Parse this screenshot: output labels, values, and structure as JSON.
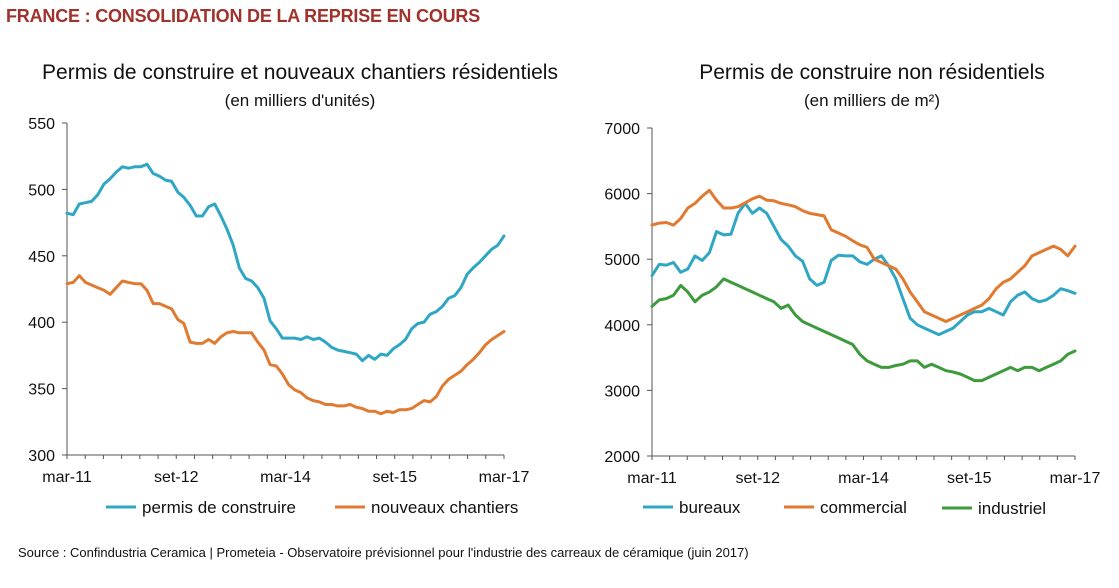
{
  "headline": "FRANCE : CONSOLIDATION DE LA REPRISE EN COURS",
  "source": "Source : Confindustria Ceramica | Prometeia - Observatoire prévisionnel pour l'industrie des carreaux de céramique (juin 2017)",
  "colors": {
    "blue": "#2fa7c4",
    "orange": "#e07a31",
    "green": "#3d9a3d"
  },
  "chart_data": [
    {
      "type": "line",
      "title": "Permis de construire et nouveaux chantiers résidentiels",
      "subtitle": "(en milliers d'unités)",
      "ylim": [
        300,
        550
      ],
      "yticks": [
        "300",
        "350",
        "400",
        "450",
        "500",
        "550"
      ],
      "xticks": [
        "mar-11",
        "set-12",
        "mar-14",
        "set-15",
        "mar-17"
      ],
      "x_index_range": [
        0,
        72
      ],
      "legend": "bottom",
      "series": [
        {
          "name": "permis de construire",
          "color": "#2fa7c4",
          "values": [
            482,
            481,
            489,
            490,
            491,
            496,
            504,
            508,
            513,
            517,
            516,
            517,
            517,
            519,
            512,
            510,
            507,
            506,
            498,
            494,
            488,
            480,
            480,
            487,
            489,
            480,
            470,
            458,
            441,
            433,
            431,
            426,
            418,
            401,
            395,
            388,
            388,
            388,
            387,
            389,
            387,
            388,
            385,
            381,
            379,
            378,
            377,
            376,
            371,
            375,
            372,
            376,
            375,
            380,
            383,
            387,
            395,
            399,
            400,
            406,
            408,
            412,
            418,
            420,
            426,
            436,
            441,
            445,
            450,
            455,
            458,
            465
          ]
        },
        {
          "name": "nouveaux chantiers",
          "color": "#e07a31",
          "values": [
            429,
            430,
            435,
            430,
            428,
            426,
            424,
            421,
            426,
            431,
            430,
            429,
            429,
            424,
            414,
            414,
            412,
            410,
            402,
            399,
            385,
            384,
            384,
            387,
            384,
            389,
            392,
            393,
            392,
            392,
            392,
            385,
            379,
            368,
            367,
            361,
            353,
            349,
            347,
            343,
            341,
            340,
            338,
            338,
            337,
            337,
            338,
            336,
            335,
            333,
            333,
            331,
            333,
            332,
            334,
            334,
            335,
            338,
            341,
            340,
            344,
            352,
            357,
            360,
            363,
            368,
            372,
            377,
            383,
            387,
            390,
            393
          ]
        }
      ]
    },
    {
      "type": "line",
      "title": "Permis de construire non résidentiels",
      "subtitle": "(en milliers de m²)",
      "ylim": [
        2000,
        7000
      ],
      "yticks": [
        "2000",
        "3000",
        "4000",
        "5000",
        "6000",
        "7000"
      ],
      "xticks": [
        "mar-11",
        "set-12",
        "mar-14",
        "set-15",
        "mar-17"
      ],
      "x_index_range": [
        0,
        72
      ],
      "legend": "bottom",
      "series": [
        {
          "name": "bureaux",
          "color": "#2fa7c4",
          "values": [
            4750,
            4920,
            4910,
            4950,
            4800,
            4850,
            5050,
            4980,
            5100,
            5420,
            5370,
            5380,
            5700,
            5850,
            5700,
            5780,
            5700,
            5500,
            5300,
            5200,
            5050,
            4970,
            4700,
            4600,
            4650,
            4980,
            5060,
            5050,
            5050,
            4960,
            4920,
            5000,
            5050,
            4900,
            4700,
            4400,
            4100,
            4000,
            3950,
            3900,
            3850,
            3900,
            3950,
            4050,
            4150,
            4200,
            4200,
            4250,
            4200,
            4150,
            4350,
            4450,
            4500,
            4400,
            4350,
            4380,
            4450,
            4550,
            4520,
            4480
          ]
        },
        {
          "name": "commercial",
          "color": "#e07a31",
          "values": [
            5520,
            5550,
            5560,
            5520,
            5620,
            5780,
            5850,
            5960,
            6050,
            5900,
            5780,
            5780,
            5800,
            5860,
            5920,
            5960,
            5900,
            5890,
            5850,
            5830,
            5800,
            5740,
            5700,
            5680,
            5660,
            5450,
            5400,
            5350,
            5280,
            5220,
            5180,
            5000,
            4950,
            4900,
            4850,
            4700,
            4500,
            4350,
            4200,
            4150,
            4100,
            4050,
            4100,
            4150,
            4200,
            4250,
            4300,
            4400,
            4550,
            4650,
            4700,
            4800,
            4900,
            5050,
            5100,
            5150,
            5200,
            5150,
            5050,
            5200
          ]
        },
        {
          "name": "industriel",
          "color": "#3d9a3d",
          "values": [
            4280,
            4380,
            4400,
            4450,
            4600,
            4500,
            4350,
            4450,
            4500,
            4580,
            4700,
            4650,
            4600,
            4550,
            4500,
            4450,
            4400,
            4350,
            4250,
            4300,
            4150,
            4050,
            4000,
            3950,
            3900,
            3850,
            3800,
            3750,
            3700,
            3550,
            3450,
            3400,
            3350,
            3350,
            3380,
            3400,
            3450,
            3450,
            3350,
            3400,
            3350,
            3300,
            3280,
            3250,
            3200,
            3150,
            3150,
            3200,
            3250,
            3300,
            3350,
            3300,
            3350,
            3350,
            3300,
            3350,
            3400,
            3450,
            3550,
            3600
          ]
        }
      ]
    }
  ]
}
